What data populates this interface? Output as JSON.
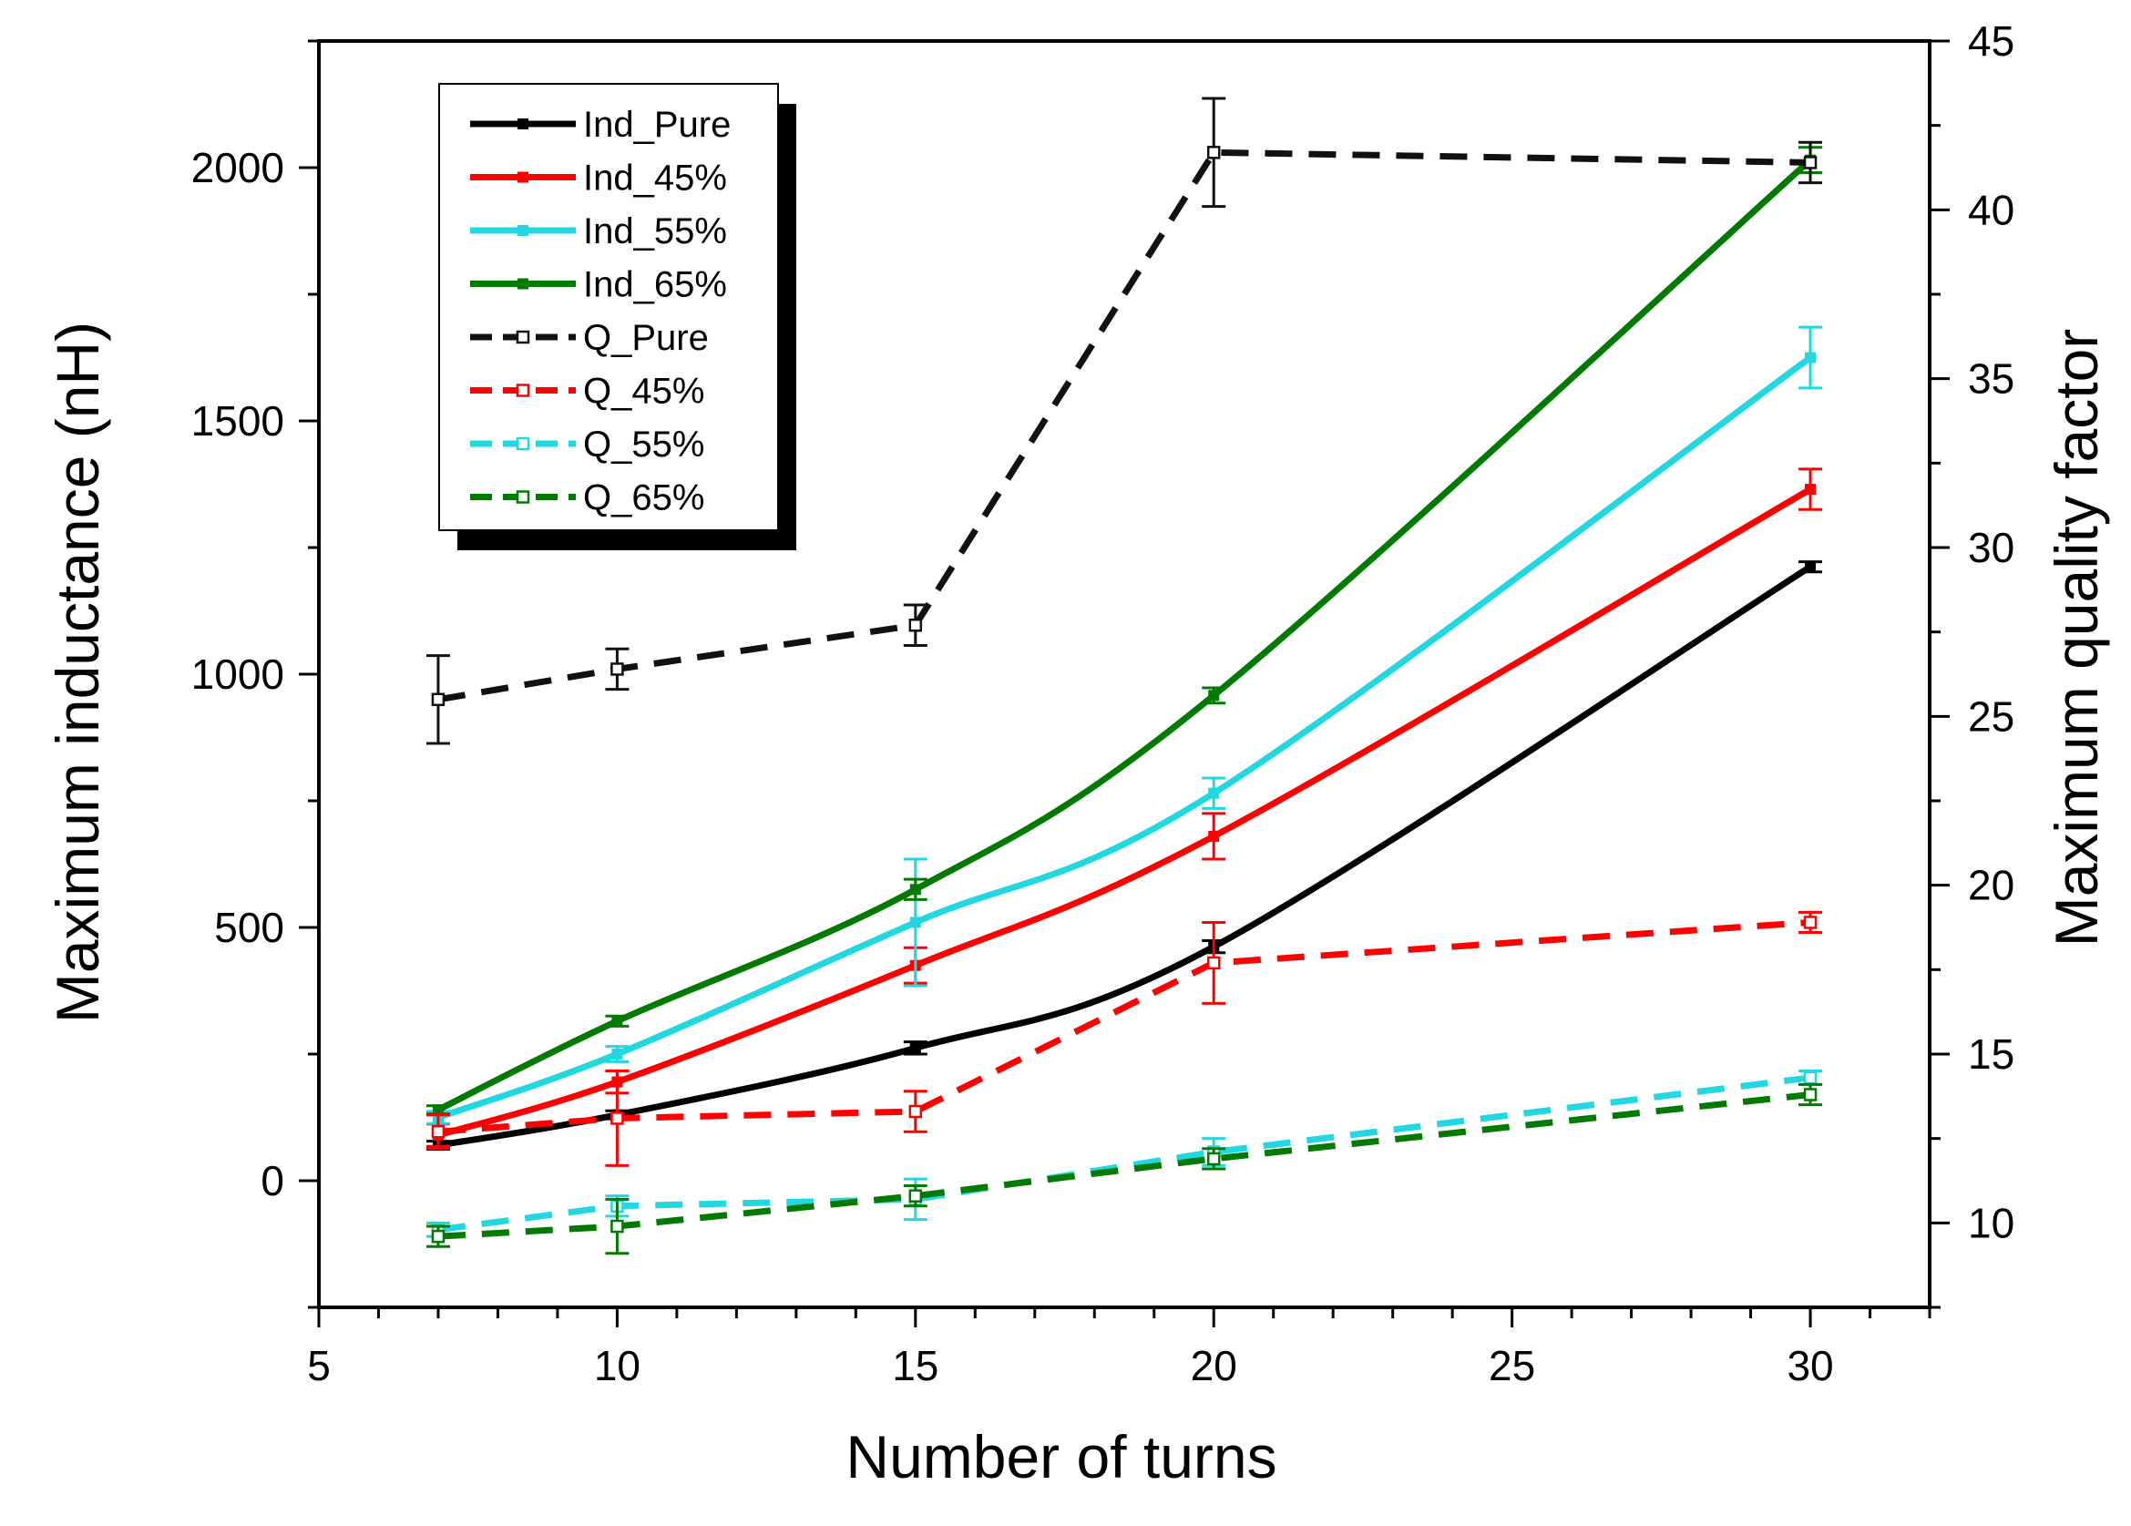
{
  "chart_data": {
    "type": "line",
    "title": "",
    "xlabel": "Number of turns",
    "ylabel": "Maximum inductance (nH)",
    "y2label": "Maximum quality factor",
    "xlim": [
      5,
      32
    ],
    "ylim": [
      -250,
      2250
    ],
    "y2lim": [
      7.5,
      45
    ],
    "x_ticks": [
      5,
      10,
      15,
      20,
      25,
      30
    ],
    "y_ticks": [
      0,
      500,
      1000,
      1500,
      2000
    ],
    "y2_ticks": [
      10,
      15,
      20,
      25,
      30,
      35,
      40,
      45
    ],
    "grid": false,
    "legend_position": "top-left",
    "x": [
      7,
      10,
      15,
      20,
      30
    ],
    "series": [
      {
        "name": "Ind_Pure",
        "axis": "left",
        "color": "#000000",
        "style": "solid",
        "marker": "filled-square",
        "values": [
          70,
          130,
          262,
          462,
          1212
        ],
        "errors": [
          8,
          8,
          12,
          12,
          10
        ]
      },
      {
        "name": "Ind_45%",
        "axis": "left",
        "color": "#ff0000",
        "style": "solid",
        "marker": "filled-square",
        "values": [
          90,
          195,
          425,
          680,
          1365
        ],
        "errors": [
          22,
          22,
          35,
          45,
          40
        ]
      },
      {
        "name": "Ind_55%",
        "axis": "left",
        "color": "#22d8e0",
        "style": "solid",
        "marker": "filled-square",
        "values": [
          125,
          250,
          510,
          765,
          1625
        ],
        "errors": [
          12,
          15,
          125,
          30,
          60
        ]
      },
      {
        "name": "Ind_65%",
        "axis": "left",
        "color": "#007a00",
        "style": "solid",
        "marker": "filled-square",
        "values": [
          140,
          315,
          575,
          958,
          2015
        ],
        "errors": [
          8,
          10,
          20,
          15,
          25
        ]
      },
      {
        "name": "Q_Pure",
        "axis": "right",
        "color": "#111111",
        "style": "dashed",
        "marker": "open-square",
        "values": [
          25.5,
          26.4,
          27.7,
          41.7,
          41.4
        ],
        "errors": [
          1.3,
          0.6,
          0.6,
          1.6,
          0.6
        ]
      },
      {
        "name": "Q_45%",
        "axis": "right",
        "color": "#ff0000",
        "style": "dashed",
        "marker": "open-square",
        "values": [
          12.7,
          13.1,
          13.3,
          17.7,
          18.9
        ],
        "errors": [
          0.5,
          1.4,
          0.6,
          1.2,
          0.3
        ]
      },
      {
        "name": "Q_55%",
        "axis": "right",
        "color": "#22d8e0",
        "style": "dashed",
        "marker": "open-square",
        "values": [
          9.8,
          10.5,
          10.7,
          12.1,
          14.3
        ],
        "errors": [
          0.2,
          0.3,
          0.6,
          0.4,
          0.2
        ]
      },
      {
        "name": "Q_65%",
        "axis": "right",
        "color": "#007a00",
        "style": "dashed",
        "marker": "open-square",
        "values": [
          9.6,
          9.9,
          10.8,
          11.9,
          13.8
        ],
        "errors": [
          0.3,
          0.8,
          0.3,
          0.3,
          0.3
        ]
      }
    ]
  }
}
